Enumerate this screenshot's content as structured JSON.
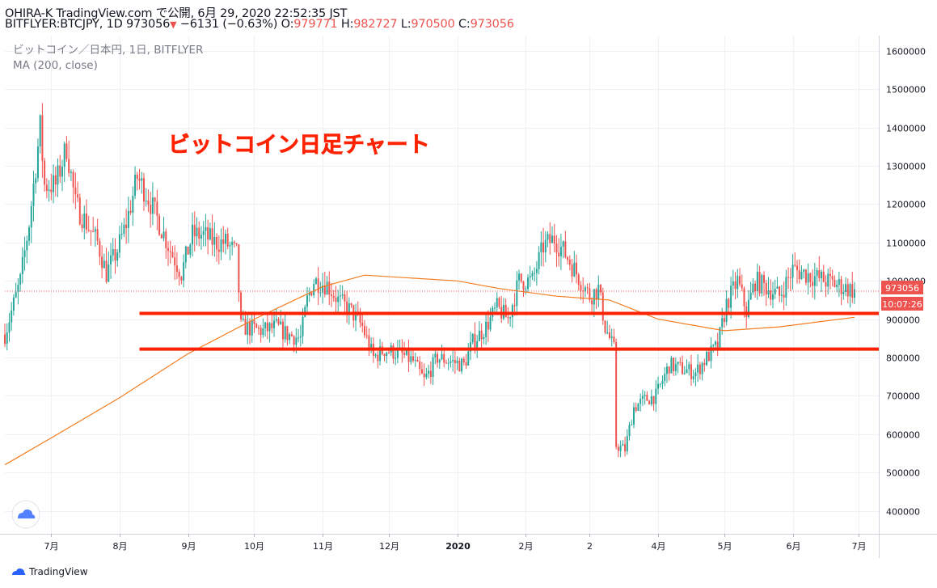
{
  "header": {
    "line1": "OHIRA-K TradingView.com で公開, 6月 29, 2020 22:52:35 JST",
    "symbol": "BITFLYER:BTCJPY, 1D 973056",
    "change": "−6131 (−0.63%)",
    "o_label": "O:",
    "o_value": "979771",
    "h_label": "H:",
    "h_value": "982727",
    "l_label": "L:",
    "l_value": "970500",
    "c_label": "C:",
    "c_value": "973056"
  },
  "legend": {
    "series_name": "ビットコイン／日本円, 1日, BITFLYER",
    "indicator": "MA (200, close)"
  },
  "annotation": "ビットコイン日足チャート",
  "price_tag": "973056",
  "countdown_tag": "10:07:26",
  "footer": {
    "brand": "TradingView"
  },
  "colors": {
    "up": "#26a69a",
    "down": "#ef5350",
    "ma": "#f57c1f",
    "support": "#ff2200",
    "grid": "#eef1f5"
  },
  "chart_data": {
    "type": "line",
    "title": "ビットコイン／日本円, 1日, BITFLYER",
    "y_axis": {
      "ticks": [
        400000,
        500000,
        600000,
        700000,
        800000,
        900000,
        1000000,
        1100000,
        1200000,
        1300000,
        1400000,
        1500000,
        1600000
      ],
      "range": [
        340000,
        1640000
      ]
    },
    "x_axis": {
      "ticks": [
        "7月",
        "8月",
        "9月",
        "10月",
        "11月",
        "12月",
        "2020",
        "2月",
        "2",
        "4月",
        "5月",
        "6月",
        "7月"
      ],
      "range": [
        "2019-06-10",
        "2020-07-10"
      ]
    },
    "last_price": 973056,
    "price_path": [
      [
        "2019-06-10",
        860000
      ],
      [
        "2019-06-17",
        1000000
      ],
      [
        "2019-06-21",
        1150000
      ],
      [
        "2019-06-26",
        1400000
      ],
      [
        "2019-06-28",
        1250000
      ],
      [
        "2019-07-03",
        1250000
      ],
      [
        "2019-07-08",
        1350000
      ],
      [
        "2019-07-12",
        1200000
      ],
      [
        "2019-07-17",
        1150000
      ],
      [
        "2019-07-22",
        1100000
      ],
      [
        "2019-07-26",
        1020000
      ],
      [
        "2019-07-31",
        1080000
      ],
      [
        "2019-08-04",
        1150000
      ],
      [
        "2019-08-09",
        1270000
      ],
      [
        "2019-08-13",
        1230000
      ],
      [
        "2019-08-19",
        1150000
      ],
      [
        "2019-08-24",
        1080000
      ],
      [
        "2019-08-29",
        1020000
      ],
      [
        "2019-09-03",
        1120000
      ],
      [
        "2019-09-08",
        1120000
      ],
      [
        "2019-09-13",
        1100000
      ],
      [
        "2019-09-18",
        1100000
      ],
      [
        "2019-09-23",
        1070000
      ],
      [
        "2019-09-25",
        880000
      ],
      [
        "2019-10-05",
        870000
      ],
      [
        "2019-10-11",
        880000
      ],
      [
        "2019-10-16",
        860000
      ],
      [
        "2019-10-22",
        850000
      ],
      [
        "2019-10-25",
        950000
      ],
      [
        "2019-10-28",
        1000000
      ],
      [
        "2019-11-03",
        990000
      ],
      [
        "2019-11-08",
        950000
      ],
      [
        "2019-11-14",
        920000
      ],
      [
        "2019-11-19",
        880000
      ],
      [
        "2019-11-24",
        800000
      ],
      [
        "2019-11-29",
        820000
      ],
      [
        "2019-12-06",
        810000
      ],
      [
        "2019-12-12",
        790000
      ],
      [
        "2019-12-17",
        740000
      ],
      [
        "2019-12-23",
        800000
      ],
      [
        "2019-12-29",
        790000
      ],
      [
        "2020-01-04",
        780000
      ],
      [
        "2020-01-08",
        840000
      ],
      [
        "2020-01-14",
        880000
      ],
      [
        "2020-01-19",
        930000
      ],
      [
        "2020-01-24",
        900000
      ],
      [
        "2020-01-29",
        1000000
      ],
      [
        "2020-02-04",
        1000000
      ],
      [
        "2020-02-09",
        1090000
      ],
      [
        "2020-02-14",
        1110000
      ],
      [
        "2020-02-19",
        1070000
      ],
      [
        "2020-02-25",
        1010000
      ],
      [
        "2020-03-01",
        960000
      ],
      [
        "2020-03-05",
        980000
      ],
      [
        "2020-03-08",
        880000
      ],
      [
        "2020-03-12",
        820000
      ],
      [
        "2020-03-13",
        570000
      ],
      [
        "2020-03-17",
        560000
      ],
      [
        "2020-03-21",
        670000
      ],
      [
        "2020-03-26",
        690000
      ],
      [
        "2020-03-31",
        700000
      ],
      [
        "2020-04-06",
        780000
      ],
      [
        "2020-04-12",
        770000
      ],
      [
        "2020-04-18",
        760000
      ],
      [
        "2020-04-23",
        800000
      ],
      [
        "2020-04-28",
        830000
      ],
      [
        "2020-05-02",
        940000
      ],
      [
        "2020-05-07",
        1000000
      ],
      [
        "2020-05-11",
        920000
      ],
      [
        "2020-05-15",
        1000000
      ],
      [
        "2020-05-21",
        980000
      ],
      [
        "2020-05-26",
        960000
      ],
      [
        "2020-06-01",
        1030000
      ],
      [
        "2020-06-06",
        1020000
      ],
      [
        "2020-06-11",
        1010000
      ],
      [
        "2020-06-16",
        1000000
      ],
      [
        "2020-06-21",
        990000
      ],
      [
        "2020-06-26",
        980000
      ],
      [
        "2020-06-29",
        973056
      ]
    ],
    "series": [
      {
        "name": "MA (200, close)",
        "points": [
          [
            "2019-06-10",
            520000
          ],
          [
            "2019-07-01",
            590000
          ],
          [
            "2019-08-01",
            695000
          ],
          [
            "2019-09-01",
            810000
          ],
          [
            "2019-10-01",
            900000
          ],
          [
            "2019-11-01",
            985000
          ],
          [
            "2019-11-20",
            1015000
          ],
          [
            "2020-01-01",
            1000000
          ],
          [
            "2020-01-20",
            980000
          ],
          [
            "2020-02-15",
            960000
          ],
          [
            "2020-03-10",
            950000
          ],
          [
            "2020-04-01",
            900000
          ],
          [
            "2020-05-01",
            870000
          ],
          [
            "2020-05-26",
            880000
          ],
          [
            "2020-06-29",
            905000
          ]
        ]
      }
    ],
    "annotations": [
      {
        "type": "horizontal-line",
        "value": 915000,
        "from": "2019-08-10",
        "to": "2020-07-10"
      },
      {
        "type": "horizontal-line",
        "value": 822000,
        "from": "2019-08-10",
        "to": "2020-07-10"
      }
    ]
  }
}
